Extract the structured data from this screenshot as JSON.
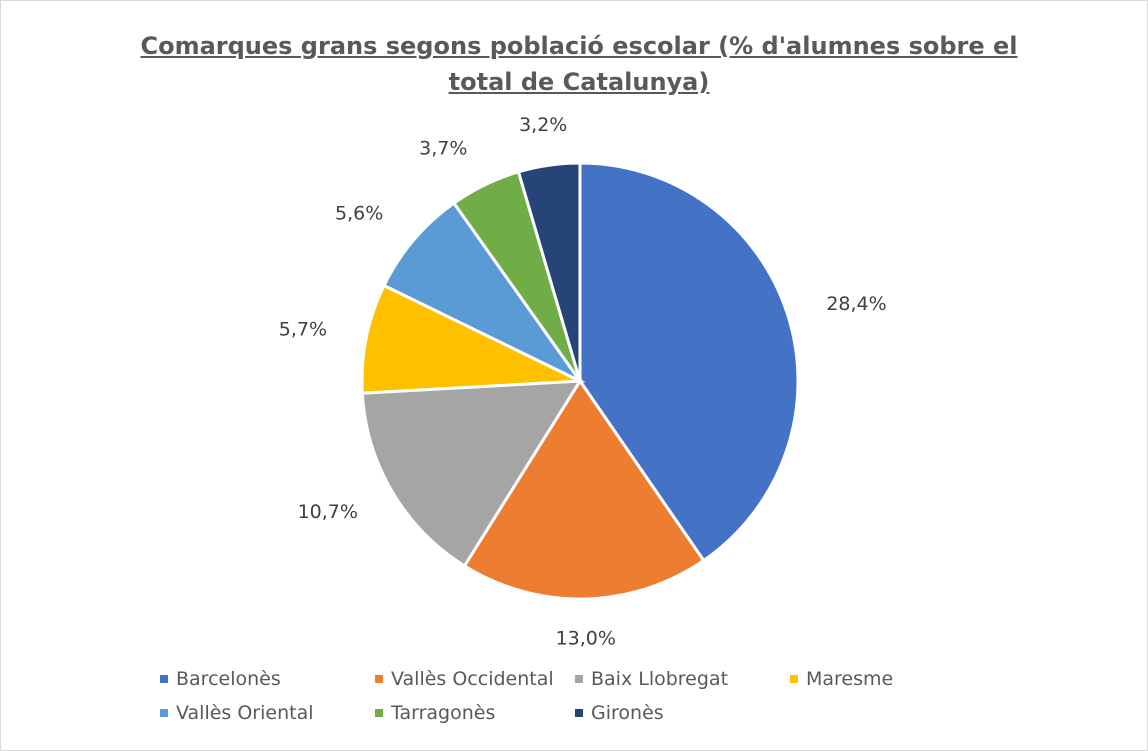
{
  "chart_data": {
    "type": "pie",
    "title": "Comarques grans segons població escolar (% d'alumnes sobre el total de Catalunya)",
    "categories": [
      "Barcelonès",
      "Vallès Occidental",
      "Baix Llobregat",
      "Maresme",
      "Vallès Oriental",
      "Tarragonès",
      "Gironès"
    ],
    "values": [
      28.4,
      13.0,
      10.7,
      5.7,
      5.6,
      3.7,
      3.2
    ],
    "value_labels": [
      "28,4%",
      "13,0%",
      "10,7%",
      "5,7%",
      "5,6%",
      "3,7%",
      "3,2%"
    ],
    "colors": [
      "#4472c4",
      "#ed7d31",
      "#a5a5a5",
      "#ffc000",
      "#5b9bd5",
      "#70ad47",
      "#264478"
    ],
    "legend": "bottom"
  }
}
